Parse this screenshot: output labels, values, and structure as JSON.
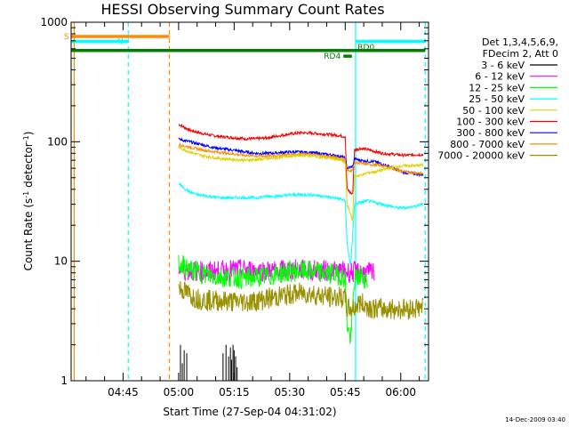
{
  "chart_data": {
    "type": "line",
    "title": "HESSI Observing Summary Count Rates",
    "xlabel": "Start Time (27-Sep-04 04:31:02)",
    "ylabel_main": "Count Rate (s",
    "ylabel_sup1": "-1",
    "ylabel_mid": " detector",
    "ylabel_sup2": "-1",
    "ylabel_end": ")",
    "yscale": "log",
    "ylim": [
      1,
      1000
    ],
    "xlim_minutes": [
      -0.03,
      96.5
    ],
    "x_ticks": [
      {
        "minute": 14,
        "label": "04:45"
      },
      {
        "minute": 29,
        "label": "05:00"
      },
      {
        "minute": 44,
        "label": "05:15"
      },
      {
        "minute": 59,
        "label": "05:30"
      },
      {
        "minute": 74,
        "label": "05:45"
      },
      {
        "minute": 89,
        "label": "06:00"
      }
    ],
    "y_ticks": [
      {
        "value": 1,
        "label": "1"
      },
      {
        "value": 10,
        "label": "10"
      },
      {
        "value": 100,
        "label": "100"
      },
      {
        "value": 1000,
        "label": "1000"
      }
    ],
    "legend": {
      "placement": "right",
      "header": [
        "Det 1,3,4,5,6,9,",
        "FDecim 2, Att 0"
      ],
      "entries": [
        {
          "label": "3 - 6 keV",
          "color": "#000000"
        },
        {
          "label": "6 - 12 keV",
          "color": "#ff00ff"
        },
        {
          "label": "12 - 25 keV",
          "color": "#00ff00"
        },
        {
          "label": "25 - 50 keV",
          "color": "#00ffff"
        },
        {
          "label": "50 - 100 keV",
          "color": "#e0d000"
        },
        {
          "label": "100 - 300 keV",
          "color": "#ee0000"
        },
        {
          "label": "300 - 800 keV",
          "color": "#0000ff"
        },
        {
          "label": "800 - 7000 keV",
          "color": "#ff8c00"
        },
        {
          "label": "7000 - 20000 keV",
          "color": "#999000"
        }
      ]
    },
    "series": [
      {
        "name": "100 - 300 keV",
        "color": "#ee0000",
        "points": [
          [
            29,
            140
          ],
          [
            32,
            125
          ],
          [
            35,
            118
          ],
          [
            38,
            113
          ],
          [
            41,
            110
          ],
          [
            44,
            108
          ],
          [
            47,
            106
          ],
          [
            50,
            106
          ],
          [
            53,
            108
          ],
          [
            56,
            112
          ],
          [
            59,
            116
          ],
          [
            62,
            119
          ],
          [
            65,
            118
          ],
          [
            68,
            116
          ],
          [
            71,
            114
          ],
          [
            73,
            112
          ],
          [
            74,
            110
          ],
          [
            74.5,
            40
          ],
          [
            76,
            36
          ],
          [
            76.5,
            85
          ],
          [
            78,
            88
          ],
          [
            80,
            86
          ],
          [
            82,
            83
          ],
          [
            84,
            80
          ],
          [
            86,
            79
          ],
          [
            88,
            78
          ],
          [
            90,
            77
          ],
          [
            93,
            78
          ],
          [
            95,
            78
          ]
        ]
      },
      {
        "name": "300 - 800 keV",
        "color": "#0000ff",
        "points": [
          [
            29,
            105
          ],
          [
            32,
            100
          ],
          [
            35,
            95
          ],
          [
            38,
            90
          ],
          [
            41,
            87
          ],
          [
            44,
            85
          ],
          [
            47,
            82
          ],
          [
            50,
            80
          ],
          [
            53,
            80
          ],
          [
            56,
            81
          ],
          [
            59,
            82
          ],
          [
            62,
            82
          ],
          [
            65,
            81
          ],
          [
            68,
            79
          ],
          [
            71,
            77
          ],
          [
            73,
            75
          ],
          [
            74,
            73
          ],
          [
            74.5,
            60
          ],
          [
            76,
            62
          ],
          [
            76.5,
            72
          ],
          [
            78,
            70
          ],
          [
            80,
            69
          ],
          [
            82,
            68
          ],
          [
            84,
            65
          ],
          [
            86,
            62
          ],
          [
            88,
            58
          ],
          [
            90,
            55
          ],
          [
            93,
            54
          ],
          [
            95,
            53
          ]
        ]
      },
      {
        "name": "800 - 7000 keV",
        "color": "#ff8c00",
        "points": [
          [
            29,
            95
          ],
          [
            32,
            90
          ],
          [
            35,
            86
          ],
          [
            38,
            83
          ],
          [
            41,
            81
          ],
          [
            44,
            79
          ],
          [
            47,
            77
          ],
          [
            50,
            76
          ],
          [
            53,
            76
          ],
          [
            56,
            77
          ],
          [
            59,
            78
          ],
          [
            62,
            79
          ],
          [
            65,
            78
          ],
          [
            68,
            76
          ],
          [
            71,
            74
          ],
          [
            73,
            72
          ],
          [
            74,
            70
          ],
          [
            74.5,
            57
          ],
          [
            76,
            58
          ],
          [
            76.5,
            67
          ],
          [
            78,
            66
          ],
          [
            80,
            65
          ],
          [
            82,
            64
          ],
          [
            84,
            63
          ],
          [
            86,
            61
          ],
          [
            88,
            58
          ],
          [
            90,
            56
          ],
          [
            93,
            55
          ],
          [
            95,
            54
          ]
        ]
      },
      {
        "name": "50 - 100 keV",
        "color": "#e0d000",
        "points": [
          [
            29,
            90
          ],
          [
            32,
            82
          ],
          [
            35,
            77
          ],
          [
            38,
            74
          ],
          [
            41,
            72
          ],
          [
            44,
            71
          ],
          [
            47,
            70
          ],
          [
            50,
            71
          ],
          [
            53,
            72
          ],
          [
            56,
            74
          ],
          [
            59,
            76
          ],
          [
            62,
            77
          ],
          [
            65,
            76
          ],
          [
            68,
            74
          ],
          [
            71,
            72
          ],
          [
            73,
            70
          ],
          [
            74,
            66
          ],
          [
            74.5,
            30
          ],
          [
            76,
            22
          ],
          [
            76.5,
            52
          ],
          [
            78,
            52
          ],
          [
            80,
            55
          ],
          [
            82,
            56
          ],
          [
            84,
            58
          ],
          [
            86,
            60
          ],
          [
            88,
            62
          ],
          [
            90,
            63
          ],
          [
            93,
            63
          ],
          [
            95,
            64
          ]
        ]
      },
      {
        "name": "25 - 50 keV",
        "color": "#00ffff",
        "points": [
          [
            29,
            45
          ],
          [
            30,
            42
          ],
          [
            32,
            38
          ],
          [
            34,
            36
          ],
          [
            37,
            35
          ],
          [
            40,
            34
          ],
          [
            43,
            34
          ],
          [
            47,
            34
          ],
          [
            50,
            34
          ],
          [
            53,
            35
          ],
          [
            56,
            35
          ],
          [
            59,
            36
          ],
          [
            62,
            36
          ],
          [
            65,
            36
          ],
          [
            68,
            35
          ],
          [
            71,
            34
          ],
          [
            73,
            33
          ],
          [
            74,
            32
          ],
          [
            74.5,
            14
          ],
          [
            75.5,
            9
          ],
          [
            76.5,
            30
          ],
          [
            78,
            31
          ],
          [
            80,
            32
          ],
          [
            82,
            31
          ],
          [
            84,
            30
          ],
          [
            86,
            29
          ],
          [
            88,
            28
          ],
          [
            90,
            28
          ],
          [
            93,
            29
          ],
          [
            95,
            30
          ]
        ]
      },
      {
        "name": "6 - 12 keV",
        "color": "#ff00ff",
        "points": [
          [
            29,
            8.5
          ],
          [
            33,
            8.3
          ],
          [
            37,
            8.2
          ],
          [
            41,
            8.3
          ],
          [
            45,
            8.5
          ],
          [
            49,
            8.4
          ],
          [
            53,
            8.3
          ],
          [
            57,
            8.4
          ],
          [
            61,
            8.5
          ],
          [
            65,
            8.4
          ],
          [
            69,
            8.3
          ],
          [
            73,
            8.2
          ],
          [
            76,
            8.1
          ],
          [
            80,
            8.0
          ],
          [
            82,
            8.0
          ]
        ]
      },
      {
        "name": "12 - 25 keV",
        "color": "#00ff00",
        "points": [
          [
            29,
            9.5
          ],
          [
            32,
            8.5
          ],
          [
            35,
            8.0
          ],
          [
            38,
            7.5
          ],
          [
            41,
            7.4
          ],
          [
            44,
            7.4
          ],
          [
            47,
            7.2
          ],
          [
            50,
            7.4
          ],
          [
            53,
            7.5
          ],
          [
            56,
            7.9
          ],
          [
            59,
            8.2
          ],
          [
            62,
            8.3
          ],
          [
            65,
            8.2
          ],
          [
            68,
            8.0
          ],
          [
            71,
            7.8
          ],
          [
            73,
            7.6
          ],
          [
            74,
            7.2
          ],
          [
            74.5,
            3.0
          ],
          [
            75.5,
            2.2
          ],
          [
            76.5,
            7.0
          ],
          [
            78,
            7.5
          ],
          [
            80,
            7.0
          ]
        ]
      },
      {
        "name": "7000 - 20000 keV",
        "color": "#999000",
        "points": [
          [
            29,
            6.0
          ],
          [
            31,
            5.5
          ],
          [
            33,
            5.0
          ],
          [
            35,
            4.8
          ],
          [
            37,
            4.7
          ],
          [
            40,
            4.7
          ],
          [
            43,
            4.6
          ],
          [
            46,
            4.6
          ],
          [
            49,
            4.6
          ],
          [
            52,
            4.8
          ],
          [
            55,
            5.0
          ],
          [
            58,
            5.2
          ],
          [
            61,
            5.4
          ],
          [
            64,
            5.4
          ],
          [
            67,
            5.2
          ],
          [
            70,
            5.0
          ],
          [
            73,
            5.0
          ],
          [
            74,
            4.8
          ],
          [
            74.5,
            4.0
          ],
          [
            76,
            4.0
          ],
          [
            78,
            4.5
          ],
          [
            80,
            4.2
          ],
          [
            82,
            4.0
          ],
          [
            85,
            4.0
          ],
          [
            88,
            4.0
          ],
          [
            91,
            4.0
          ],
          [
            94,
            4.1
          ],
          [
            95,
            4.1
          ]
        ]
      }
    ],
    "spikes_3_6_keV": {
      "color": "#000000",
      "x": [
        29.5,
        30.0,
        30.5,
        31.2,
        41.0,
        41.8,
        42.5,
        43.0,
        43.3,
        43.7,
        44.0,
        44.4,
        44.8
      ],
      "y": [
        2.0,
        1.4,
        1.8,
        1.7,
        1.7,
        2.0,
        1.6,
        1.9,
        1.5,
        2.0,
        1.8,
        1.6,
        1.3
      ]
    },
    "flag_bars": [
      {
        "code": "S",
        "color": "#ff8c00",
        "x_start": 0,
        "x_end": 26.5,
        "y": 760
      },
      {
        "code": "N",
        "color": "#00ffff",
        "x_start": 0,
        "x_end": 15.5,
        "y": 690
      },
      {
        "code": "",
        "color": "#00ffff",
        "x_start": 76.8,
        "x_end": 95.6,
        "y": 690
      },
      {
        "code": "",
        "color": "#008000",
        "x_start": 0,
        "x_end": 95.6,
        "y": 580
      },
      {
        "code": "RD0",
        "color": "#008000",
        "x_start": 75.2,
        "x_end": 95.6,
        "y": 580
      },
      {
        "code": "RD4",
        "color": "#008000",
        "x_start": 73.5,
        "x_end": 75.8,
        "y": 520
      }
    ],
    "vertical_lines": [
      {
        "x": 0.8,
        "color": "#ff8c00",
        "style": "solid"
      },
      {
        "x": 15.4,
        "color": "#00ffff",
        "style": "dashed"
      },
      {
        "x": 26.5,
        "color": "#ff8c00",
        "style": "dashed"
      },
      {
        "x": 76.8,
        "color": "#00ffff",
        "style": "solid"
      },
      {
        "x": 95.6,
        "color": "#00ffff",
        "style": "dashed"
      }
    ]
  },
  "timestamp": "14-Dec-2009 03:40"
}
